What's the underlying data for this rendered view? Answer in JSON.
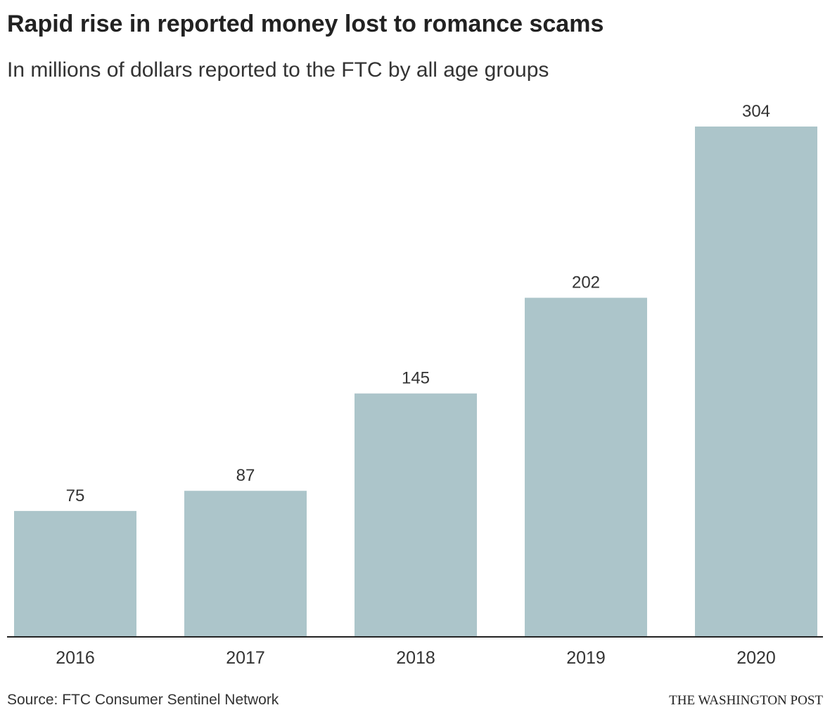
{
  "header": {
    "title": "Rapid rise in reported money lost to romance scams",
    "subtitle": "In millions of dollars reported to the FTC by all age groups"
  },
  "footer": {
    "source": "Source: FTC Consumer Sentinel Network",
    "credit": "THE WASHINGTON POST"
  },
  "colors": {
    "bar": "#acc5ca",
    "baseline": "#222222",
    "text": "#333333"
  },
  "chart_data": {
    "type": "bar",
    "title": "Rapid rise in reported money lost to romance scams",
    "subtitle": "In millions of dollars reported to the FTC by all age groups",
    "categories": [
      "2016",
      "2017",
      "2018",
      "2019",
      "2020"
    ],
    "values": [
      75,
      87,
      145,
      202,
      304
    ],
    "value_labels": [
      "75",
      "87",
      "145",
      "202",
      "304"
    ],
    "xlabel": "",
    "ylabel": "",
    "ylim": [
      0,
      304
    ],
    "grid": false,
    "legend": "none",
    "data_labels": "above bars"
  }
}
